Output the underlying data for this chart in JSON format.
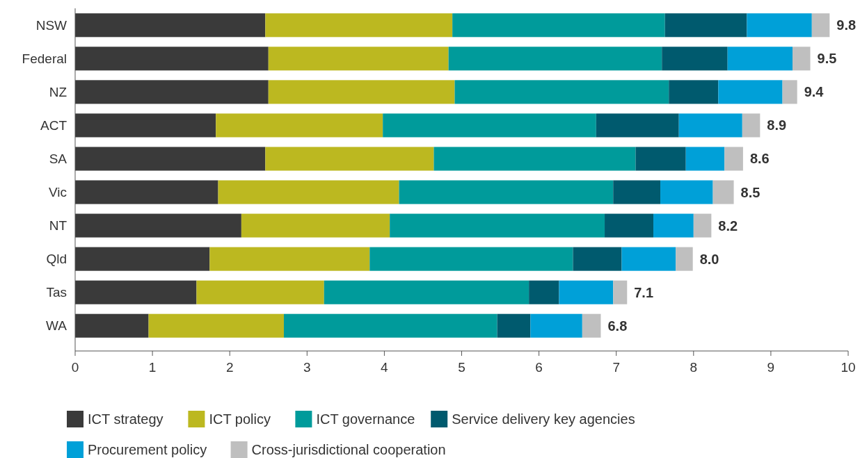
{
  "chart_data": {
    "type": "bar",
    "orientation": "horizontal",
    "stacked": true,
    "categories": [
      "NSW",
      "Federal",
      "NZ",
      "ACT",
      "SA",
      "Vic",
      "NT",
      "Qld",
      "Tas",
      "WA"
    ],
    "series": [
      {
        "name": "ICT strategy",
        "color": "#3a3a3a",
        "values": [
          2.46,
          2.5,
          2.5,
          1.82,
          2.46,
          1.85,
          2.15,
          1.74,
          1.57,
          0.95
        ]
      },
      {
        "name": "ICT policy",
        "color": "#bcb820",
        "values": [
          2.42,
          2.33,
          2.41,
          2.16,
          2.18,
          2.34,
          1.92,
          2.07,
          1.65,
          1.75
        ]
      },
      {
        "name": "ICT governance",
        "color": "#009b9b",
        "values": [
          2.75,
          2.76,
          2.77,
          2.76,
          2.61,
          2.77,
          2.78,
          2.63,
          2.65,
          2.76
        ]
      },
      {
        "name": "Service delivery key agencies",
        "color": "#005a6e",
        "values": [
          1.06,
          0.85,
          0.64,
          1.07,
          0.65,
          0.61,
          0.63,
          0.63,
          0.39,
          0.43
        ]
      },
      {
        "name": "Procurement policy",
        "color": "#00a0d8",
        "values": [
          0.84,
          0.84,
          0.83,
          0.82,
          0.5,
          0.68,
          0.52,
          0.7,
          0.7,
          0.67
        ]
      },
      {
        "name": "Cross-jurisdictional cooperation",
        "color": "#bfbfbf",
        "values": [
          0.23,
          0.23,
          0.19,
          0.23,
          0.24,
          0.27,
          0.23,
          0.22,
          0.18,
          0.24
        ]
      }
    ],
    "totals": [
      "9.8",
      "9.5",
      "9.4",
      "8.9",
      "8.6",
      "8.5",
      "8.2",
      "8.0",
      "7.1",
      "6.8"
    ],
    "xlim": [
      0,
      10
    ],
    "xticks": [
      0,
      1,
      2,
      3,
      4,
      5,
      6,
      7,
      8,
      9,
      10
    ],
    "grid": false,
    "legend": "bottom"
  }
}
